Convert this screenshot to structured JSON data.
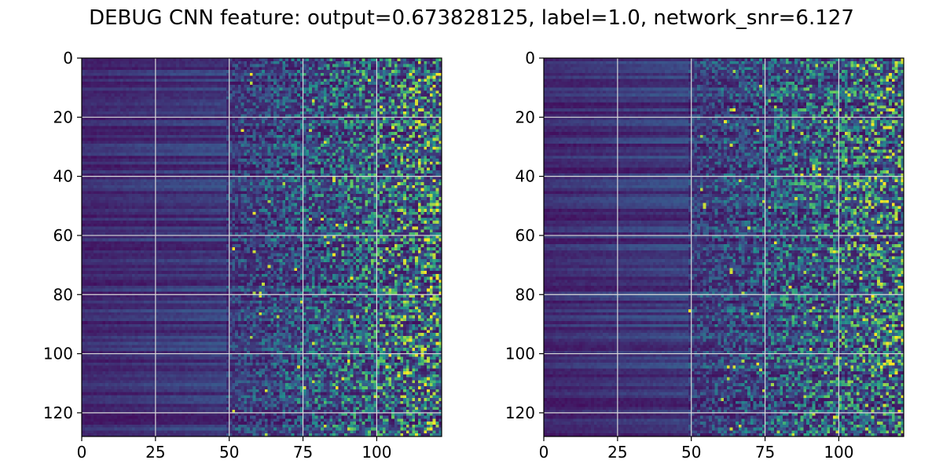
{
  "title": "DEBUG CNN feature: output=0.673828125, label=1.0, network_snr=6.127",
  "chart_data": [
    {
      "type": "heatmap",
      "colormap": "viridis",
      "colormap_stops": [
        "#440154",
        "#3b528b",
        "#21918c",
        "#5ec962",
        "#fde725"
      ],
      "rows": 128,
      "cols": 122,
      "xlim": [
        0,
        122
      ],
      "ylim": [
        128,
        0
      ],
      "xticks": [
        0,
        25,
        50,
        75,
        100
      ],
      "yticks": [
        0,
        20,
        40,
        60,
        80,
        100,
        120
      ],
      "grid": true,
      "description_trend": "intensity low and row-striped for columns 0-50, rising to noisy high values for columns 50-122"
    },
    {
      "type": "heatmap",
      "colormap": "viridis",
      "colormap_stops": [
        "#440154",
        "#3b528b",
        "#21918c",
        "#5ec962",
        "#fde725"
      ],
      "rows": 128,
      "cols": 122,
      "xlim": [
        0,
        122
      ],
      "ylim": [
        128,
        0
      ],
      "xticks": [
        0,
        25,
        50,
        75,
        100
      ],
      "yticks": [
        0,
        20,
        40,
        60,
        80,
        100,
        120
      ],
      "grid": true,
      "description_trend": "intensity low and row-striped for columns 0-50, rising to noisy high values for columns 50-122"
    }
  ]
}
